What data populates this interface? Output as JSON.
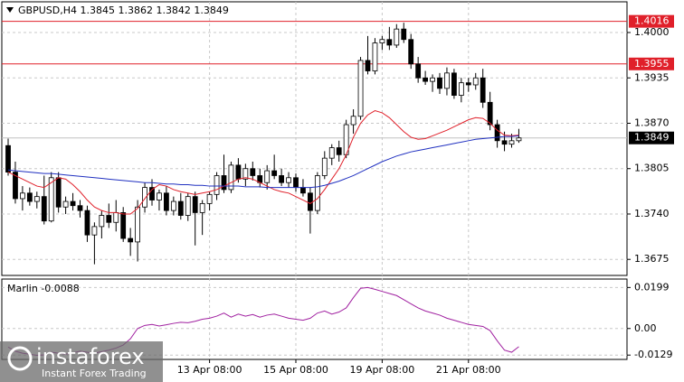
{
  "chart_data": [
    {
      "type": "candlestick",
      "title": "GBPUSD,H4  1.3845 1.3862 1.3842 1.3849",
      "categories": [
        null,
        null,
        null,
        null,
        null,
        null,
        null,
        null,
        null,
        null,
        null,
        null,
        null,
        null,
        null,
        null,
        null,
        null,
        null,
        null,
        null,
        null,
        null,
        null,
        null,
        null,
        null,
        null,
        "13 Apr 08:00",
        null,
        null,
        null,
        null,
        null,
        null,
        null,
        null,
        null,
        null,
        null,
        "15 Apr 08:00",
        null,
        null,
        null,
        null,
        null,
        null,
        null,
        null,
        null,
        null,
        null,
        "19 Apr 08:00",
        null,
        null,
        null,
        null,
        null,
        null,
        null,
        null,
        null,
        null,
        null,
        "21 Apr 08:00",
        null,
        null,
        null,
        null,
        null,
        null,
        null
      ],
      "ohlc": [
        [
          1.3838,
          1.3848,
          1.3795,
          1.38
        ],
        [
          1.38,
          1.3815,
          1.3755,
          1.3762
        ],
        [
          1.3762,
          1.378,
          1.3745,
          1.377
        ],
        [
          1.377,
          1.3778,
          1.3752,
          1.3758
        ],
        [
          1.3758,
          1.3772,
          1.3748,
          1.3765
        ],
        [
          1.3765,
          1.3795,
          1.3725,
          1.373
        ],
        [
          1.373,
          1.38,
          1.3728,
          1.3792
        ],
        [
          1.3792,
          1.38,
          1.3742,
          1.375
        ],
        [
          1.375,
          1.3765,
          1.374,
          1.3758
        ],
        [
          1.3758,
          1.377,
          1.3745,
          1.3752
        ],
        [
          1.3752,
          1.376,
          1.3735,
          1.3745
        ],
        [
          1.3745,
          1.3752,
          1.37,
          1.371
        ],
        [
          1.371,
          1.3728,
          1.3668,
          1.3722
        ],
        [
          1.3722,
          1.3745,
          1.3705,
          1.3738
        ],
        [
          1.3738,
          1.3755,
          1.372,
          1.3728
        ],
        [
          1.3728,
          1.376,
          1.3715,
          1.3742
        ],
        [
          1.3742,
          1.375,
          1.37,
          1.3705
        ],
        [
          1.3705,
          1.372,
          1.368,
          1.37
        ],
        [
          1.37,
          1.376,
          1.3672,
          1.375
        ],
        [
          1.375,
          1.3785,
          1.3742,
          1.3778
        ],
        [
          1.3778,
          1.379,
          1.3752,
          1.376
        ],
        [
          1.376,
          1.3775,
          1.3745,
          1.377
        ],
        [
          1.377,
          1.378,
          1.3738,
          1.3745
        ],
        [
          1.3745,
          1.3765,
          1.3738,
          1.3758
        ],
        [
          1.3758,
          1.377,
          1.3732,
          1.3738
        ],
        [
          1.3738,
          1.377,
          1.373,
          1.3765
        ],
        [
          1.3765,
          1.3772,
          1.3695,
          1.3742
        ],
        [
          1.3742,
          1.376,
          1.371,
          1.3755
        ],
        [
          1.3755,
          1.3772,
          1.3745,
          1.3768
        ],
        [
          1.3768,
          1.38,
          1.376,
          1.3795
        ],
        [
          1.3795,
          1.3825,
          1.377,
          1.3775
        ],
        [
          1.3775,
          1.3815,
          1.377,
          1.381
        ],
        [
          1.381,
          1.382,
          1.3785,
          1.379
        ],
        [
          1.379,
          1.3812,
          1.378,
          1.3805
        ],
        [
          1.3805,
          1.3815,
          1.3788,
          1.3795
        ],
        [
          1.3795,
          1.3805,
          1.3778,
          1.3785
        ],
        [
          1.3785,
          1.381,
          1.3775,
          1.3802
        ],
        [
          1.3802,
          1.3825,
          1.379,
          1.3795
        ],
        [
          1.3795,
          1.3805,
          1.378,
          1.3785
        ],
        [
          1.3785,
          1.38,
          1.3778,
          1.3792
        ],
        [
          1.3792,
          1.3798,
          1.3772,
          1.3778
        ],
        [
          1.3778,
          1.379,
          1.3765,
          1.377
        ],
        [
          1.377,
          1.3778,
          1.3712,
          1.3745
        ],
        [
          1.3745,
          1.38,
          1.374,
          1.3795
        ],
        [
          1.3795,
          1.383,
          1.379,
          1.382
        ],
        [
          1.382,
          1.384,
          1.381,
          1.3835
        ],
        [
          1.3835,
          1.3845,
          1.3815,
          1.3825
        ],
        [
          1.3825,
          1.3875,
          1.382,
          1.3868
        ],
        [
          1.3868,
          1.389,
          1.3855,
          1.388
        ],
        [
          1.388,
          1.3965,
          1.3875,
          1.396
        ],
        [
          1.396,
          1.3995,
          1.394,
          1.3945
        ],
        [
          1.3945,
          1.3992,
          1.394,
          1.3985
        ],
        [
          1.3985,
          1.3995,
          1.3975,
          1.399
        ],
        [
          1.399,
          1.4008,
          1.3975,
          1.3982
        ],
        [
          1.3982,
          1.4012,
          1.3978,
          1.4005
        ],
        [
          1.4005,
          1.4014,
          1.3985,
          1.399
        ],
        [
          1.399,
          1.3998,
          1.3948,
          1.3955
        ],
        [
          1.3955,
          1.3965,
          1.3928,
          1.3935
        ],
        [
          1.3935,
          1.3945,
          1.3925,
          1.393
        ],
        [
          1.393,
          1.394,
          1.3915,
          1.3935
        ],
        [
          1.3935,
          1.3942,
          1.3912,
          1.392
        ],
        [
          1.392,
          1.395,
          1.391,
          1.3942
        ],
        [
          1.3942,
          1.3948,
          1.3905,
          1.391
        ],
        [
          1.391,
          1.3935,
          1.39,
          1.3928
        ],
        [
          1.3928,
          1.3935,
          1.3915,
          1.3925
        ],
        [
          1.3925,
          1.3942,
          1.3918,
          1.3935
        ],
        [
          1.3935,
          1.3948,
          1.3892,
          1.39
        ],
        [
          1.39,
          1.3915,
          1.386,
          1.3868
        ],
        [
          1.3868,
          1.3875,
          1.3835,
          1.3845
        ],
        [
          1.3845,
          1.3858,
          1.383,
          1.384
        ],
        [
          1.384,
          1.3855,
          1.3835,
          1.3845
        ],
        [
          1.3845,
          1.3862,
          1.3842,
          1.3849
        ]
      ],
      "lines": [
        {
          "color": "#e0202a",
          "values": [
            1.38,
            1.3795,
            1.379,
            1.3785,
            1.378,
            1.3778,
            1.3785,
            1.3792,
            1.379,
            1.3782,
            1.3772,
            1.376,
            1.375,
            1.3745,
            1.3742,
            1.3742,
            1.374,
            1.374,
            1.3748,
            1.3762,
            1.3775,
            1.3782,
            1.378,
            1.3775,
            1.3772,
            1.377,
            1.3768,
            1.377,
            1.3772,
            1.3775,
            1.378,
            1.3785,
            1.379,
            1.3792,
            1.379,
            1.3785,
            1.378,
            1.3775,
            1.3772,
            1.377,
            1.3765,
            1.376,
            1.3755,
            1.3762,
            1.3775,
            1.379,
            1.3805,
            1.3825,
            1.385,
            1.387,
            1.3882,
            1.3888,
            1.3885,
            1.3878,
            1.3868,
            1.3858,
            1.385,
            1.3847,
            1.3848,
            1.3852,
            1.3856,
            1.386,
            1.3865,
            1.387,
            1.3875,
            1.3878,
            1.3877,
            1.387,
            1.386,
            1.3853,
            1.3852,
            1.3853
          ]
        },
        {
          "color": "#2030c0",
          "values": [
            1.3803,
            1.3802,
            1.3801,
            1.38,
            1.3799,
            1.3798,
            1.3798,
            1.3797,
            1.3796,
            1.3795,
            1.3794,
            1.3793,
            1.3792,
            1.3791,
            1.379,
            1.3789,
            1.3788,
            1.3787,
            1.3786,
            1.3785,
            1.3785,
            1.3784,
            1.3783,
            1.3783,
            1.3782,
            1.3782,
            1.3781,
            1.3781,
            1.378,
            1.378,
            1.378,
            1.378,
            1.378,
            1.3779,
            1.3779,
            1.3779,
            1.3778,
            1.3778,
            1.3778,
            1.3778,
            1.3778,
            1.3778,
            1.3778,
            1.3779,
            1.3781,
            1.3784,
            1.3787,
            1.3791,
            1.3795,
            1.38,
            1.3805,
            1.381,
            1.3815,
            1.3819,
            1.3823,
            1.3826,
            1.3829,
            1.3831,
            1.3833,
            1.3835,
            1.3837,
            1.3839,
            1.3841,
            1.3843,
            1.3845,
            1.3847,
            1.3848,
            1.3849,
            1.385,
            1.3851,
            1.3851,
            1.3852
          ]
        }
      ],
      "levels": [
        {
          "value": 1.4016,
          "color": "#e0202a"
        },
        {
          "value": 1.3955,
          "color": "#e0202a"
        }
      ],
      "last_price": 1.3849,
      "ylim": [
        1.3652,
        1.4044
      ],
      "yticks": [
        {
          "value": 1.4,
          "label": "1.4000"
        },
        1.3935,
        {
          "value": 1.387,
          "label": "1.3870"
        },
        1.3805,
        {
          "value": 1.374,
          "label": "1.3740"
        },
        1.3675
      ],
      "grid": true
    },
    {
      "type": "line",
      "title": "Marlin -0.0088",
      "series": [
        {
          "color": "#a020a0",
          "values": [
            -0.009,
            -0.011,
            -0.012,
            -0.0125,
            -0.013,
            -0.0128,
            -0.0115,
            -0.012,
            -0.0125,
            -0.0118,
            -0.011,
            -0.0115,
            -0.012,
            -0.0112,
            -0.0105,
            -0.0095,
            -0.008,
            -0.005,
            0.0,
            0.0015,
            0.002,
            0.0012,
            0.0018,
            0.0025,
            0.003,
            0.0028,
            0.0035,
            0.0045,
            0.005,
            0.006,
            0.0075,
            0.0055,
            0.007,
            0.006,
            0.0068,
            0.0055,
            0.0065,
            0.007,
            0.006,
            0.005,
            0.0045,
            0.004,
            0.005,
            0.0075,
            0.0085,
            0.007,
            0.008,
            0.01,
            0.015,
            0.0195,
            0.0199,
            0.019,
            0.018,
            0.017,
            0.016,
            0.014,
            0.012,
            0.01,
            0.0085,
            0.0075,
            0.0065,
            0.005,
            0.004,
            0.003,
            0.002,
            0.0015,
            0.001,
            -0.001,
            -0.006,
            -0.0105,
            -0.0115,
            -0.0088
          ]
        }
      ],
      "ylim": [
        -0.015,
        0.024
      ],
      "yticks": [
        0.0199,
        {
          "value": 0,
          "label": "0.00"
        },
        -0.0129
      ],
      "grid": true
    }
  ],
  "watermark": {
    "brand": "instaforex",
    "tagline": "Instant Forex Trading"
  }
}
